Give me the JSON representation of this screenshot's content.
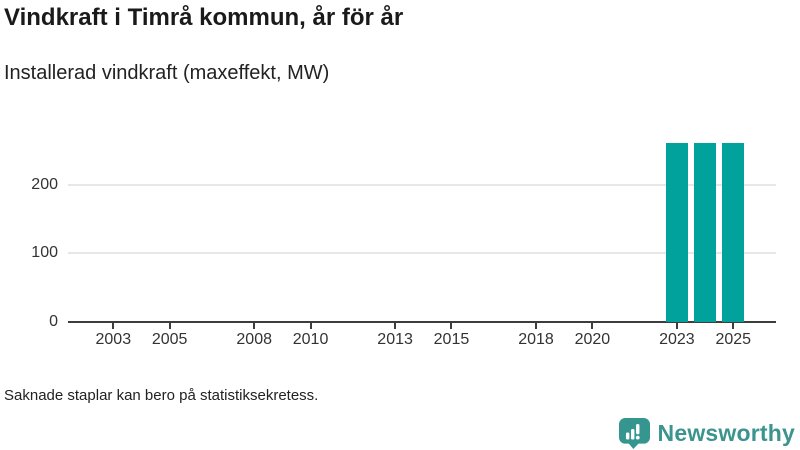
{
  "header": {
    "title": "Vindkraft i Timrå kommun, år för år",
    "subtitle": "Installerad vindkraft (maxeffekt, MW)"
  },
  "chart_data": {
    "type": "bar",
    "title": "Vindkraft i Timrå kommun, år för år",
    "subtitle": "Installerad vindkraft (maxeffekt, MW)",
    "ylabel": "Installerad vindkraft (maxeffekt, MW)",
    "xlabel": "",
    "unit": "MW",
    "x": [
      2023,
      2024,
      2025
    ],
    "values": [
      260,
      260,
      260
    ],
    "x_axis_ticks": [
      2003,
      2005,
      2008,
      2010,
      2013,
      2015,
      2018,
      2020,
      2023,
      2025
    ],
    "y_axis_ticks": [
      0,
      100,
      200
    ],
    "ylim": [
      0,
      280
    ],
    "x_range_years": [
      2001.4,
      2026.5
    ],
    "grid": "horizontal",
    "legend": "none",
    "bar_color": "#00a29b"
  },
  "footer": {
    "note": "Saknade staplar kan bero på statistiksekretess.",
    "logo_text": "Newsworthy"
  },
  "colors": {
    "bar": "#00a29b",
    "axis": "#3d3d3d",
    "grid": "#e7e7e7",
    "title_text": "#1a1a1a",
    "tick_label": "#333333",
    "logo": "#3b948e"
  }
}
